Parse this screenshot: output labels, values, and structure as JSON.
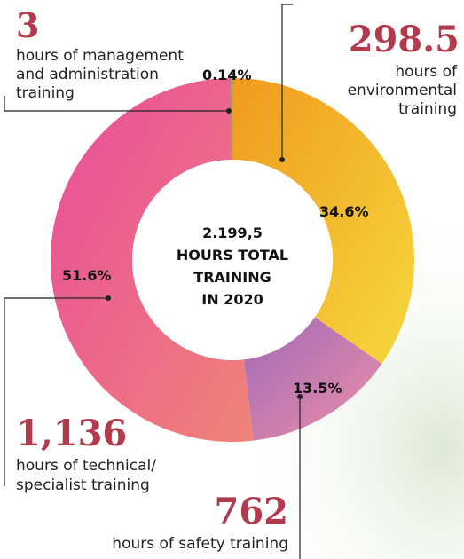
{
  "chart_data": {
    "type": "donut",
    "center_text": [
      "2.199,5",
      "HOURS TOTAL",
      "TRAINING",
      "IN 2020"
    ],
    "values": [
      34.6,
      13.5,
      51.6,
      0.14
    ],
    "value_labels": [
      "34.6%",
      "13.5%",
      "51.6%",
      "0.14%"
    ],
    "colors": [
      [
        "#ef9a1e",
        "#f6d83e"
      ],
      [
        "#a06ab8",
        "#ee8fa6"
      ],
      [
        "#e84c9c",
        "#f08378"
      ],
      [
        "#4db6c6",
        "#4db6c6"
      ]
    ],
    "annotations": [
      {
        "text": "298.5",
        "description": [
          "hours of",
          "environmental",
          "training"
        ]
      },
      {
        "text": "762",
        "description": [
          "hours of safety training"
        ]
      },
      {
        "text": "1,136",
        "description": [
          "hours of technical/",
          "specialist training"
        ]
      },
      {
        "text": "3",
        "description": [
          "hours of management",
          "and administration",
          "training"
        ]
      }
    ]
  }
}
